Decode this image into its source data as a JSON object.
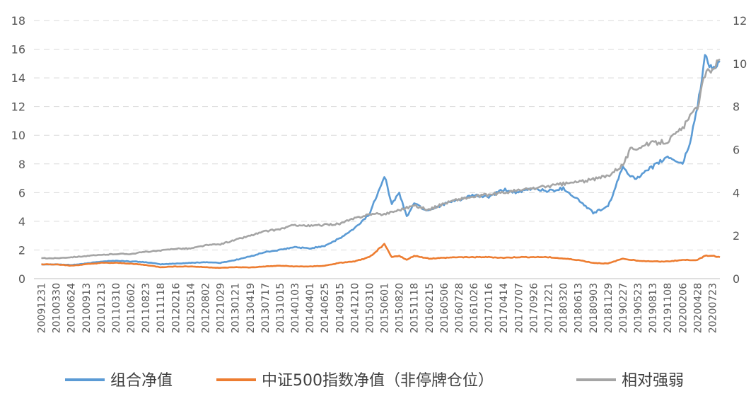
{
  "chart_data": {
    "type": "line",
    "title": "",
    "xlabel": "",
    "ylabel": "",
    "y_left_range": [
      0,
      18
    ],
    "y_left_ticks": [
      "0",
      "2",
      "4",
      "6",
      "8",
      "10",
      "12",
      "14",
      "16",
      "18"
    ],
    "y_right_range": [
      0,
      12
    ],
    "y_right_ticks": [
      "0",
      "2",
      "4",
      "6",
      "8",
      "10",
      "12"
    ],
    "grid": "horizontal dashed",
    "legend_position": "bottom",
    "x_tick_labels": [
      "20091231",
      "20100330",
      "20100624",
      "20100913",
      "20101213",
      "20110310",
      "20110602",
      "20110823",
      "20111118",
      "20120216",
      "20120514",
      "20120802",
      "20121029",
      "20130121",
      "20130419",
      "20130717",
      "20131015",
      "20140103",
      "20140401",
      "20140625",
      "20140915",
      "20141210",
      "20150310",
      "20150601",
      "20150820",
      "20151118",
      "20160215",
      "20160506",
      "20160728",
      "20161026",
      "20170116",
      "20170414",
      "20170707",
      "20170926",
      "20171221",
      "20180320",
      "20180613",
      "20180903",
      "20181129",
      "20190227",
      "20190523",
      "20190813",
      "20191108",
      "20200206",
      "20200428",
      "20200723"
    ],
    "series": [
      {
        "name": "组合净值",
        "axis": "left",
        "color": "#5b9bd5",
        "points": [
          [
            0,
            1.0
          ],
          [
            1,
            1.0
          ],
          [
            2,
            0.95
          ],
          [
            3,
            1.05
          ],
          [
            4,
            1.2
          ],
          [
            5,
            1.25
          ],
          [
            6,
            1.2
          ],
          [
            7,
            1.15
          ],
          [
            8,
            1.0
          ],
          [
            9,
            1.05
          ],
          [
            10,
            1.1
          ],
          [
            11,
            1.15
          ],
          [
            12,
            1.1
          ],
          [
            13,
            1.3
          ],
          [
            14,
            1.55
          ],
          [
            15,
            1.85
          ],
          [
            16,
            2.0
          ],
          [
            17,
            2.2
          ],
          [
            18,
            2.1
          ],
          [
            19,
            2.3
          ],
          [
            20,
            2.8
          ],
          [
            21,
            3.5
          ],
          [
            22,
            4.5
          ],
          [
            23,
            7.2
          ],
          [
            23.5,
            5.2
          ],
          [
            24,
            6.0
          ],
          [
            24.5,
            4.3
          ],
          [
            25,
            5.3
          ],
          [
            25.7,
            4.8
          ],
          [
            26,
            4.8
          ],
          [
            27,
            5.2
          ],
          [
            28,
            5.5
          ],
          [
            29,
            5.8
          ],
          [
            30,
            5.7
          ],
          [
            31,
            6.2
          ],
          [
            32,
            6.0
          ],
          [
            33,
            6.3
          ],
          [
            34,
            6.1
          ],
          [
            35,
            6.3
          ],
          [
            36,
            5.5
          ],
          [
            37,
            4.6
          ],
          [
            38,
            5.0
          ],
          [
            39,
            7.8
          ],
          [
            39.5,
            7.2
          ],
          [
            40,
            7.0
          ],
          [
            41,
            7.8
          ],
          [
            42,
            8.5
          ],
          [
            43,
            8.0
          ],
          [
            43.5,
            9.5
          ],
          [
            44,
            12.0
          ],
          [
            44.5,
            15.5
          ],
          [
            45,
            14.6
          ],
          [
            45.5,
            15.1
          ]
        ]
      },
      {
        "name": "中证500指数净值（非停牌仓位）",
        "axis": "left",
        "color": "#ed7d31",
        "points": [
          [
            0,
            1.0
          ],
          [
            1,
            1.0
          ],
          [
            2,
            0.9
          ],
          [
            3,
            1.0
          ],
          [
            4,
            1.1
          ],
          [
            5,
            1.1
          ],
          [
            6,
            1.05
          ],
          [
            7,
            0.95
          ],
          [
            8,
            0.8
          ],
          [
            9,
            0.85
          ],
          [
            10,
            0.85
          ],
          [
            11,
            0.8
          ],
          [
            12,
            0.75
          ],
          [
            13,
            0.8
          ],
          [
            14,
            0.78
          ],
          [
            15,
            0.85
          ],
          [
            16,
            0.9
          ],
          [
            17,
            0.85
          ],
          [
            18,
            0.85
          ],
          [
            19,
            0.9
          ],
          [
            20,
            1.1
          ],
          [
            21,
            1.2
          ],
          [
            22,
            1.5
          ],
          [
            23,
            2.4
          ],
          [
            23.5,
            1.5
          ],
          [
            24,
            1.6
          ],
          [
            24.5,
            1.3
          ],
          [
            25,
            1.6
          ],
          [
            26,
            1.4
          ],
          [
            27,
            1.45
          ],
          [
            28,
            1.5
          ],
          [
            29,
            1.5
          ],
          [
            30,
            1.5
          ],
          [
            31,
            1.45
          ],
          [
            32,
            1.5
          ],
          [
            33,
            1.5
          ],
          [
            34,
            1.5
          ],
          [
            35,
            1.4
          ],
          [
            36,
            1.3
          ],
          [
            37,
            1.1
          ],
          [
            38,
            1.05
          ],
          [
            39,
            1.4
          ],
          [
            40,
            1.25
          ],
          [
            41,
            1.2
          ],
          [
            42,
            1.2
          ],
          [
            43,
            1.3
          ],
          [
            44,
            1.3
          ],
          [
            44.5,
            1.6
          ],
          [
            45,
            1.6
          ],
          [
            45.5,
            1.5
          ]
        ]
      },
      {
        "name": "相对强弱",
        "axis": "right",
        "color": "#a5a5a5",
        "points": [
          [
            0,
            0.95
          ],
          [
            1,
            0.95
          ],
          [
            2,
            1.0
          ],
          [
            3,
            1.05
          ],
          [
            4,
            1.1
          ],
          [
            5,
            1.15
          ],
          [
            6,
            1.15
          ],
          [
            7,
            1.25
          ],
          [
            8,
            1.3
          ],
          [
            9,
            1.4
          ],
          [
            10,
            1.4
          ],
          [
            11,
            1.55
          ],
          [
            12,
            1.6
          ],
          [
            13,
            1.8
          ],
          [
            14,
            2.0
          ],
          [
            15,
            2.2
          ],
          [
            16,
            2.3
          ],
          [
            17,
            2.5
          ],
          [
            18,
            2.45
          ],
          [
            19,
            2.5
          ],
          [
            20,
            2.55
          ],
          [
            21,
            2.8
          ],
          [
            22,
            3.0
          ],
          [
            23,
            3.0
          ],
          [
            24,
            3.2
          ],
          [
            25,
            3.4
          ],
          [
            26,
            3.2
          ],
          [
            27,
            3.5
          ],
          [
            28,
            3.7
          ],
          [
            29,
            3.8
          ],
          [
            30,
            3.9
          ],
          [
            31,
            4.0
          ],
          [
            32,
            4.1
          ],
          [
            33,
            4.2
          ],
          [
            34,
            4.3
          ],
          [
            35,
            4.4
          ],
          [
            36,
            4.5
          ],
          [
            37,
            4.6
          ],
          [
            38,
            4.8
          ],
          [
            39,
            5.3
          ],
          [
            39.5,
            6.0
          ],
          [
            40,
            6.1
          ],
          [
            41,
            6.3
          ],
          [
            42,
            6.4
          ],
          [
            43,
            7.0
          ],
          [
            44,
            8.0
          ],
          [
            44.5,
            9.5
          ],
          [
            45,
            9.8
          ],
          [
            45.5,
            10.2
          ]
        ]
      }
    ]
  }
}
